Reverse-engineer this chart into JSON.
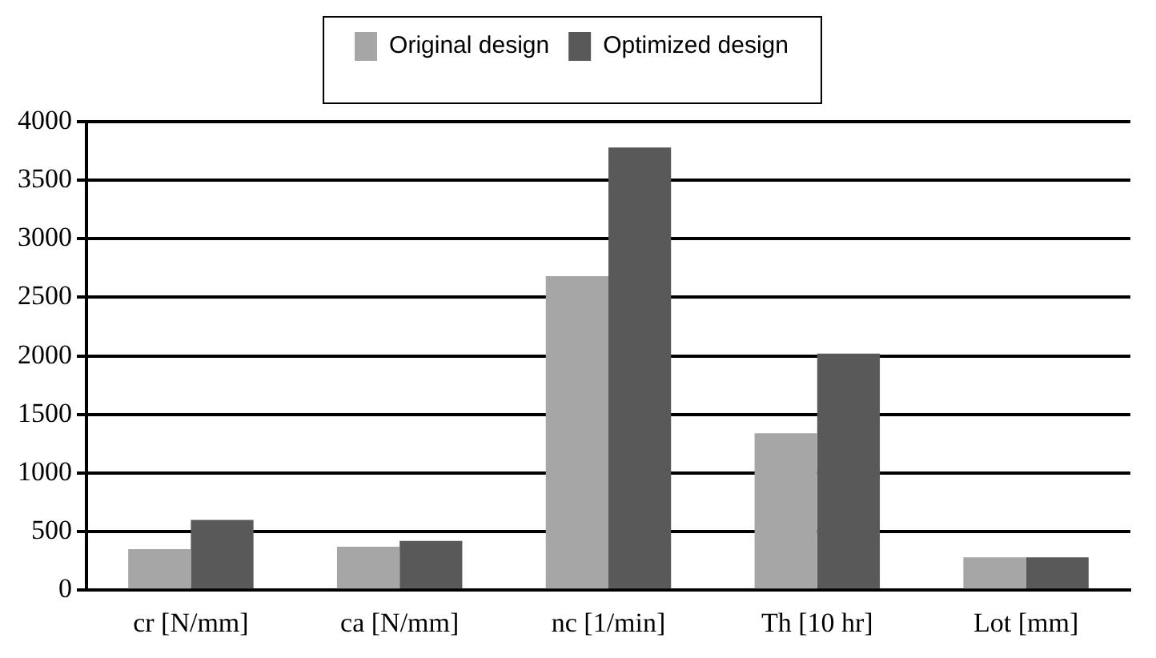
{
  "chart_data": {
    "type": "bar",
    "categories": [
      "cr [N/mm]",
      "ca [N/mm]",
      "nc [1/min]",
      "Th [10 hr]",
      "Lot [mm]"
    ],
    "series": [
      {
        "name": "Original design",
        "color": "#a6a6a6",
        "values": [
          350,
          370,
          2680,
          1340,
          280
        ]
      },
      {
        "name": "Optimized design",
        "color": "#595959",
        "values": [
          600,
          420,
          3780,
          2020,
          280
        ]
      }
    ],
    "ylim": [
      0,
      4000
    ],
    "yticks": [
      0,
      500,
      1000,
      1500,
      2000,
      2500,
      3000,
      3500,
      4000
    ],
    "grid": "y",
    "legend": "top"
  }
}
